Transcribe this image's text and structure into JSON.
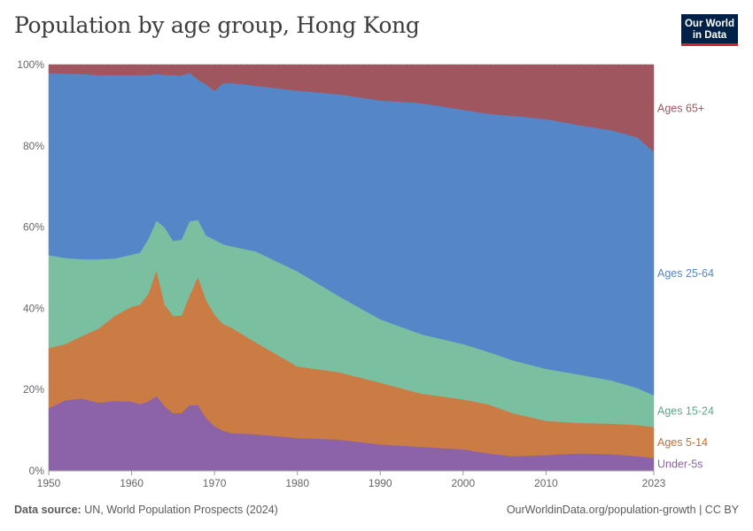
{
  "header": {
    "title": "Population by age group, Hong Kong",
    "logo_line1": "Our World",
    "logo_line2": "in Data"
  },
  "footer": {
    "source_label": "Data source:",
    "source_text": "UN, World Population Prospects (2024)",
    "right_text": "OurWorldinData.org/population-growth | CC BY"
  },
  "chart_data": {
    "type": "area",
    "stacked": true,
    "normalized_percent": true,
    "title": "Population by age group, Hong Kong",
    "xlim": [
      1950,
      2023
    ],
    "ylim": [
      0,
      100
    ],
    "x_ticks": [
      1950,
      1960,
      1970,
      1980,
      1990,
      2000,
      2010,
      2023
    ],
    "x_tick_labels": [
      "1950",
      "1960",
      "1970",
      "1980",
      "1990",
      "2000",
      "2010",
      "2023"
    ],
    "y_ticks": [
      0,
      20,
      40,
      60,
      80,
      100
    ],
    "y_tick_labels": [
      "0%",
      "20%",
      "40%",
      "60%",
      "80%",
      "100%"
    ],
    "grid": "horizontal-dashed",
    "legend_placement": "right-inline",
    "x": [
      1950,
      1952,
      1954,
      1956,
      1958,
      1960,
      1961,
      1962,
      1963,
      1964,
      1965,
      1966,
      1967,
      1968,
      1969,
      1970,
      1971,
      1972,
      1975,
      1980,
      1985,
      1990,
      1995,
      2000,
      2003,
      2006,
      2010,
      2014,
      2018,
      2021,
      2023
    ],
    "series": [
      {
        "name": "Under-5s",
        "color": "#8c63a9",
        "values": [
          15.4,
          17.4,
          17.8,
          16.8,
          17.2,
          17.1,
          16.4,
          17.1,
          18.4,
          15.9,
          14.2,
          14.2,
          16.2,
          16.2,
          13.0,
          11.0,
          9.9,
          9.3,
          9.0,
          8.1,
          7.7,
          6.5,
          5.9,
          5.3,
          4.3,
          3.6,
          3.9,
          4.3,
          4.1,
          3.6,
          3.2
        ]
      },
      {
        "name": "Ages 5-14",
        "color": "#cb7b44",
        "values": [
          14.8,
          13.8,
          15.4,
          18.2,
          21.0,
          23.3,
          24.5,
          26.4,
          31.0,
          25.0,
          24.0,
          24.0,
          27.0,
          31.6,
          29.0,
          27.5,
          26.3,
          26.0,
          22.6,
          17.6,
          16.6,
          15.2,
          13.1,
          12.3,
          12.1,
          10.6,
          8.4,
          7.5,
          7.5,
          7.7,
          7.6
        ]
      },
      {
        "name": "Ages 15-24",
        "color": "#7bbfa1",
        "values": [
          22.9,
          21.2,
          18.9,
          17.1,
          14.1,
          12.8,
          12.8,
          13.5,
          12.2,
          19.0,
          18.4,
          18.7,
          18.2,
          14.0,
          15.9,
          18.4,
          19.6,
          20.0,
          22.4,
          23.4,
          18.7,
          15.6,
          14.6,
          13.6,
          12.9,
          13.0,
          12.8,
          11.9,
          10.6,
          9.1,
          7.8
        ]
      },
      {
        "name": "Ages 25-64",
        "color": "#5587c8",
        "values": [
          44.8,
          45.4,
          45.6,
          45.3,
          45.1,
          44.2,
          43.7,
          40.4,
          36.1,
          37.6,
          40.8,
          40.4,
          36.6,
          34.5,
          37.2,
          36.6,
          39.6,
          40.2,
          40.8,
          44.5,
          49.7,
          53.9,
          56.9,
          57.7,
          58.6,
          60.2,
          61.5,
          61.4,
          61.6,
          61.7,
          59.9
        ]
      },
      {
        "name": "Ages 65+",
        "color": "#a0565e",
        "values": [
          2.1,
          2.2,
          2.3,
          2.6,
          2.6,
          2.6,
          2.6,
          2.6,
          2.3,
          2.5,
          2.6,
          2.7,
          2.0,
          3.7,
          4.9,
          6.5,
          4.6,
          4.5,
          5.2,
          6.4,
          7.3,
          8.8,
          9.5,
          11.1,
          12.1,
          12.6,
          13.4,
          14.9,
          16.2,
          17.9,
          21.5
        ]
      }
    ],
    "labels": [
      "Ages 65+",
      "Ages 25-64",
      "Ages 15-24",
      "Ages 5-14",
      "Under-5s"
    ],
    "label_colors": [
      "#a0565e",
      "#5587c8",
      "#5ea88a",
      "#c0703c",
      "#8c63a9"
    ]
  }
}
